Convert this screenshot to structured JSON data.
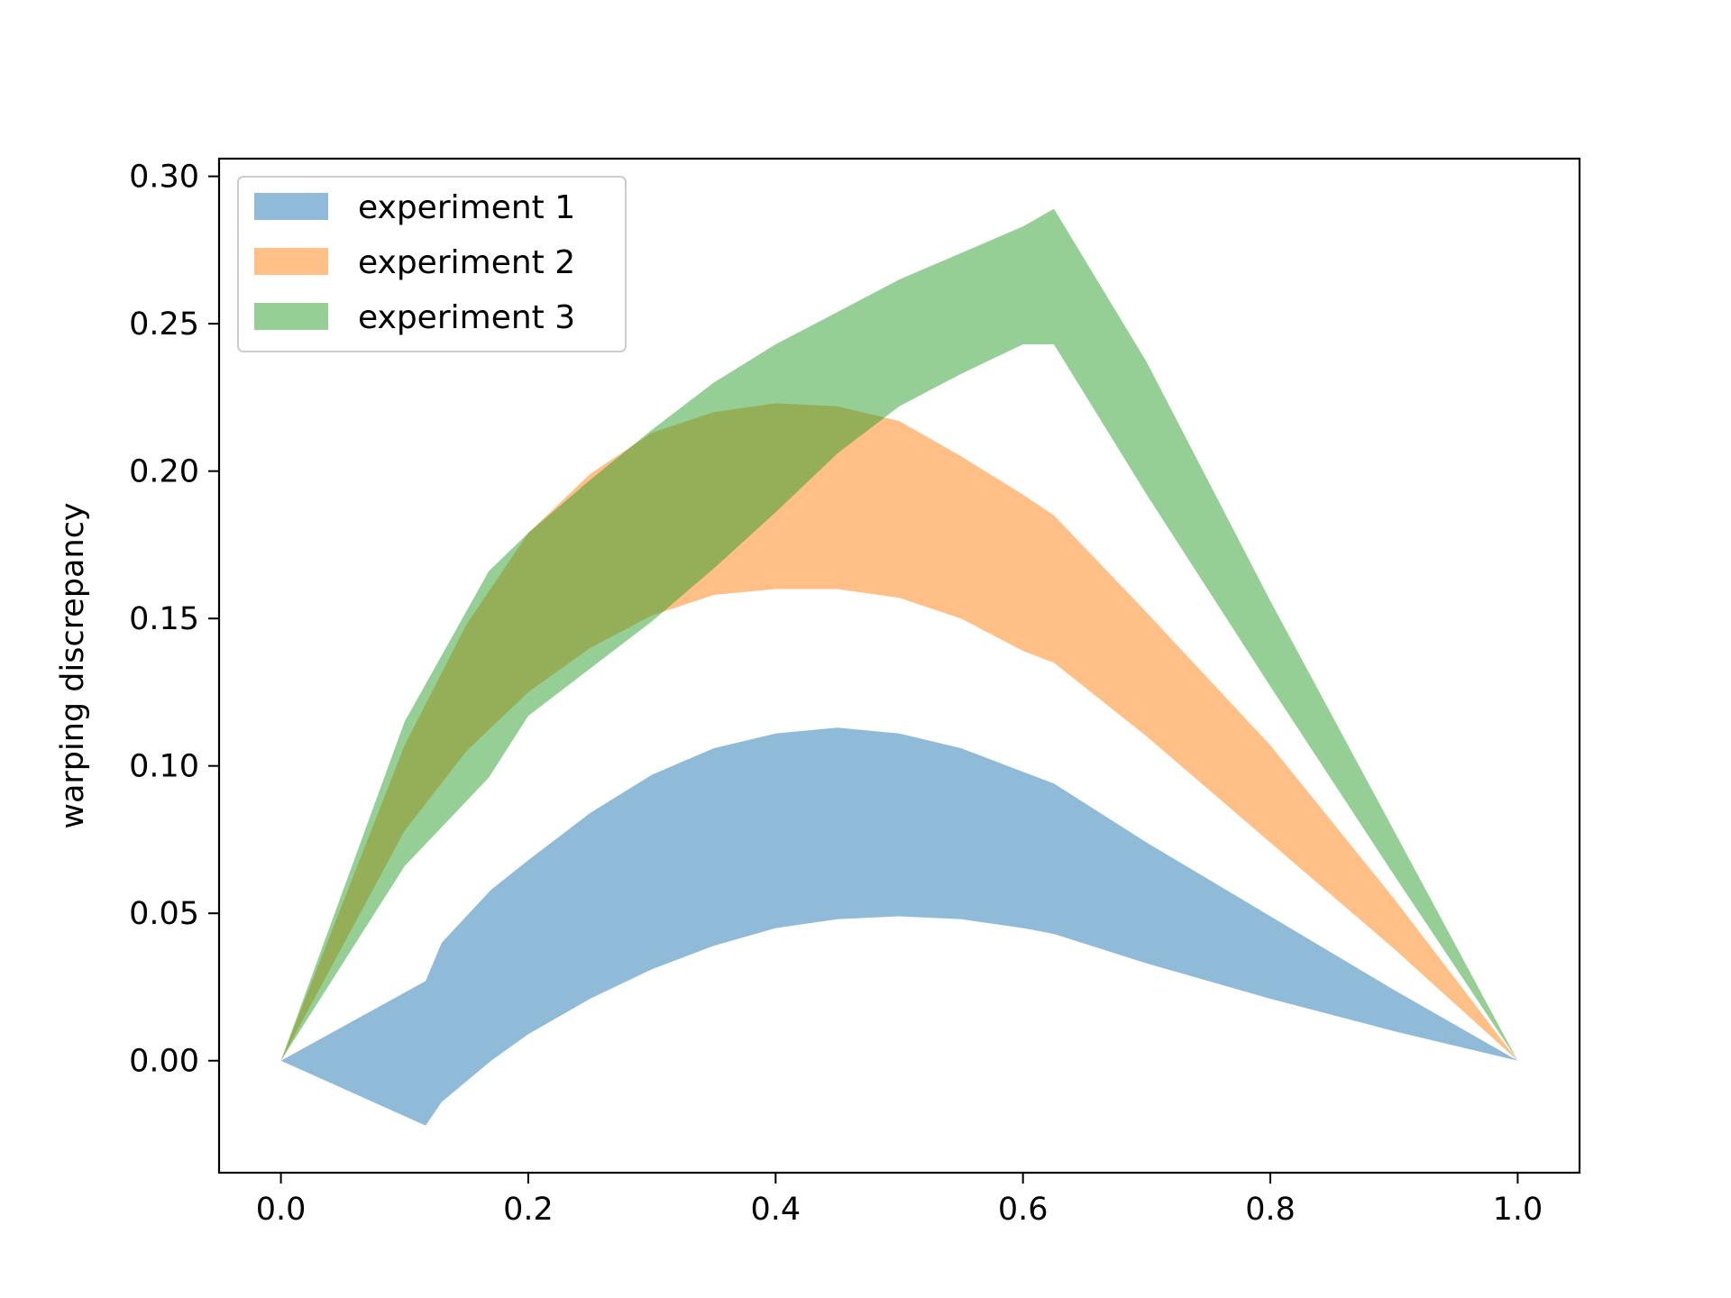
{
  "chart_data": {
    "type": "area",
    "title": "",
    "xlabel": "",
    "ylabel": "warping discrepancy",
    "xlim": [
      -0.05,
      1.05
    ],
    "ylim": [
      -0.038,
      0.306
    ],
    "xticks": [
      "0.0",
      "0.2",
      "0.4",
      "0.6",
      "0.8",
      "1.0"
    ],
    "yticks": [
      "0.00",
      "0.05",
      "0.10",
      "0.15",
      "0.20",
      "0.25",
      "0.30"
    ],
    "grid": false,
    "legend_position": "top-left",
    "series": [
      {
        "name": "experiment 1",
        "color": "#1f77b4",
        "alpha": 0.5,
        "x": [
          0.0,
          0.117,
          0.13,
          0.17,
          0.2,
          0.25,
          0.3,
          0.35,
          0.4,
          0.45,
          0.5,
          0.55,
          0.6,
          0.625,
          0.7,
          0.8,
          0.9,
          1.0
        ],
        "upper": [
          0.0,
          0.027,
          0.04,
          0.058,
          0.068,
          0.084,
          0.097,
          0.106,
          0.111,
          0.113,
          0.111,
          0.106,
          0.098,
          0.094,
          0.074,
          0.049,
          0.024,
          0.0
        ],
        "lower": [
          0.0,
          -0.022,
          -0.014,
          0.0,
          0.009,
          0.021,
          0.031,
          0.039,
          0.045,
          0.048,
          0.049,
          0.048,
          0.045,
          0.043,
          0.033,
          0.021,
          0.01,
          0.0
        ]
      },
      {
        "name": "experiment 2",
        "color": "#ff7f0e",
        "alpha": 0.5,
        "x": [
          0.0,
          0.1,
          0.15,
          0.2,
          0.25,
          0.3,
          0.35,
          0.4,
          0.45,
          0.5,
          0.55,
          0.6,
          0.625,
          0.7,
          0.8,
          0.9,
          1.0
        ],
        "upper": [
          0.0,
          0.107,
          0.148,
          0.179,
          0.199,
          0.213,
          0.22,
          0.223,
          0.222,
          0.217,
          0.205,
          0.192,
          0.185,
          0.152,
          0.107,
          0.055,
          0.0
        ],
        "lower": [
          0.0,
          0.078,
          0.105,
          0.125,
          0.14,
          0.151,
          0.158,
          0.16,
          0.16,
          0.157,
          0.15,
          0.139,
          0.135,
          0.11,
          0.074,
          0.038,
          0.0
        ]
      },
      {
        "name": "experiment 3",
        "color": "#2ca02c",
        "alpha": 0.5,
        "x": [
          0.0,
          0.1,
          0.168,
          0.2,
          0.25,
          0.3,
          0.35,
          0.4,
          0.45,
          0.5,
          0.55,
          0.6,
          0.625,
          0.7,
          0.8,
          0.9,
          1.0
        ],
        "upper": [
          0.0,
          0.115,
          0.166,
          0.179,
          0.197,
          0.214,
          0.23,
          0.243,
          0.254,
          0.265,
          0.274,
          0.283,
          0.289,
          0.237,
          0.156,
          0.078,
          0.0
        ],
        "lower": [
          0.0,
          0.066,
          0.096,
          0.117,
          0.133,
          0.149,
          0.167,
          0.186,
          0.206,
          0.222,
          0.233,
          0.243,
          0.243,
          0.192,
          0.127,
          0.063,
          0.0
        ]
      }
    ]
  }
}
